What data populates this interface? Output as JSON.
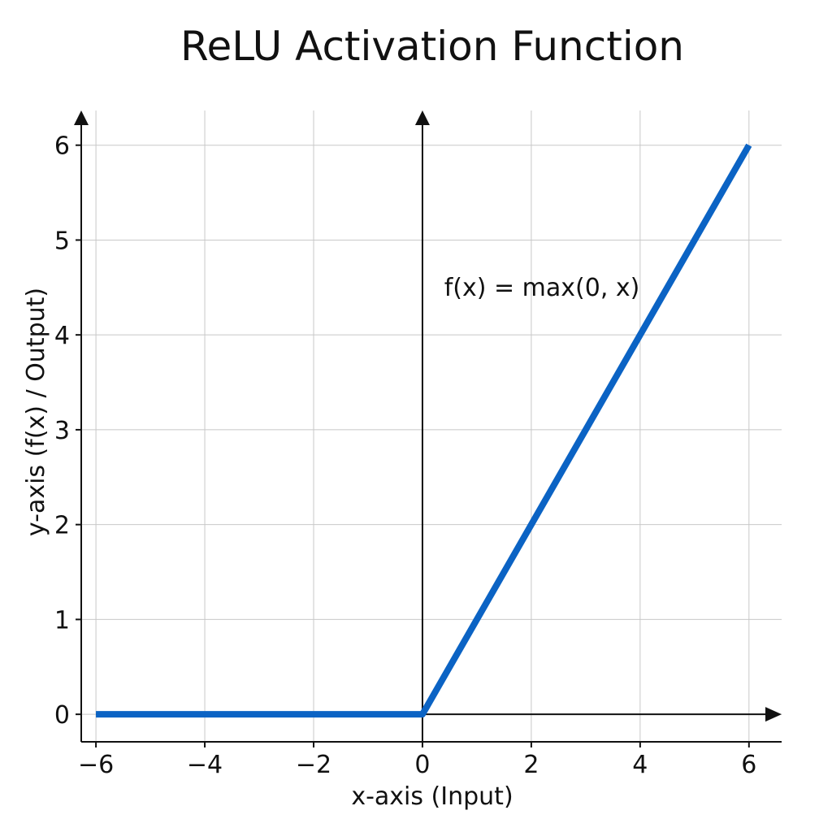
{
  "chart_data": {
    "type": "line",
    "title": "ReLU Activation Function",
    "xlabel": "x-axis (Input)",
    "ylabel": "y-axis (f(x) / Output)",
    "xlim": [
      -6.27,
      6.6
    ],
    "ylim": [
      -0.29,
      6.4
    ],
    "x_ticks": [
      -6,
      -4,
      -2,
      0,
      2,
      4,
      6
    ],
    "x_tick_labels": [
      "−6",
      "−4",
      "−2",
      "0",
      "2",
      "4",
      "6"
    ],
    "y_ticks": [
      0,
      1,
      2,
      3,
      4,
      5,
      6
    ],
    "y_tick_labels": [
      "0",
      "1",
      "2",
      "3",
      "4",
      "5",
      "6"
    ],
    "grid": true,
    "series": [
      {
        "x": [
          -6,
          0,
          6
        ],
        "y": [
          0,
          0,
          6
        ],
        "color": "#0b63c4"
      }
    ],
    "annotations": [
      {
        "text": "f(x) = max(0, x)",
        "x": 0.4,
        "y": 4.5
      }
    ]
  }
}
